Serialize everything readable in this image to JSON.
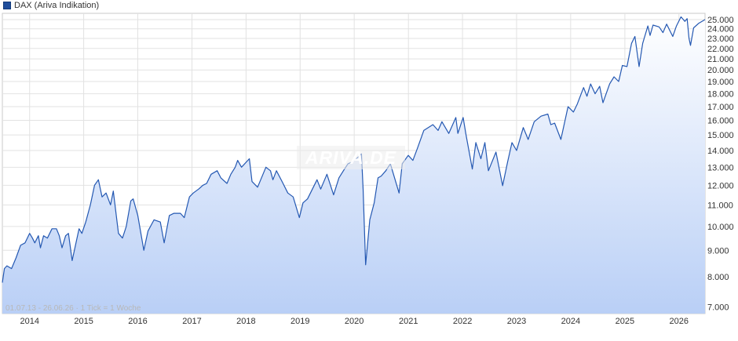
{
  "chart_data": {
    "type": "area",
    "series": [
      {
        "name": "DAX (Ariva Indikation)",
        "color": "#2458b2",
        "points": [
          [
            "2013-07-01",
            7800
          ],
          [
            "2013-07-15",
            8300
          ],
          [
            "2013-08-01",
            8400
          ],
          [
            "2013-09-01",
            8300
          ],
          [
            "2013-10-01",
            8700
          ],
          [
            "2013-11-01",
            9200
          ],
          [
            "2013-12-01",
            9300
          ],
          [
            "2014-01-01",
            9700
          ],
          [
            "2014-01-20",
            9500
          ],
          [
            "2014-02-05",
            9300
          ],
          [
            "2014-03-01",
            9600
          ],
          [
            "2014-03-15",
            9100
          ],
          [
            "2014-04-05",
            9600
          ],
          [
            "2014-05-01",
            9500
          ],
          [
            "2014-06-01",
            9900
          ],
          [
            "2014-07-01",
            9900
          ],
          [
            "2014-07-20",
            9600
          ],
          [
            "2014-08-08",
            9100
          ],
          [
            "2014-09-01",
            9600
          ],
          [
            "2014-09-20",
            9700
          ],
          [
            "2014-10-15",
            8600
          ],
          [
            "2014-11-10",
            9300
          ],
          [
            "2014-12-01",
            9900
          ],
          [
            "2014-12-20",
            9700
          ],
          [
            "2015-01-15",
            10200
          ],
          [
            "2015-02-15",
            11000
          ],
          [
            "2015-03-15",
            12000
          ],
          [
            "2015-04-10",
            12300
          ],
          [
            "2015-05-05",
            11400
          ],
          [
            "2015-06-01",
            11600
          ],
          [
            "2015-07-01",
            11000
          ],
          [
            "2015-07-20",
            11700
          ],
          [
            "2015-08-24",
            9700
          ],
          [
            "2015-09-20",
            9500
          ],
          [
            "2015-10-15",
            10000
          ],
          [
            "2015-11-15",
            11200
          ],
          [
            "2015-12-01",
            11300
          ],
          [
            "2016-01-01",
            10500
          ],
          [
            "2016-02-11",
            9000
          ],
          [
            "2016-03-10",
            9800
          ],
          [
            "2016-04-20",
            10300
          ],
          [
            "2016-06-01",
            10200
          ],
          [
            "2016-06-27",
            9300
          ],
          [
            "2016-08-01",
            10500
          ],
          [
            "2016-09-01",
            10600
          ],
          [
            "2016-10-15",
            10600
          ],
          [
            "2016-11-10",
            10400
          ],
          [
            "2016-12-15",
            11400
          ],
          [
            "2017-01-10",
            11600
          ],
          [
            "2017-02-15",
            11800
          ],
          [
            "2017-03-15",
            12000
          ],
          [
            "2017-04-10",
            12100
          ],
          [
            "2017-05-10",
            12600
          ],
          [
            "2017-06-20",
            12800
          ],
          [
            "2017-07-15",
            12400
          ],
          [
            "2017-08-25",
            12100
          ],
          [
            "2017-09-20",
            12600
          ],
          [
            "2017-10-20",
            13000
          ],
          [
            "2017-11-05",
            13400
          ],
          [
            "2017-12-01",
            13000
          ],
          [
            "2018-01-23",
            13500
          ],
          [
            "2018-02-10",
            12200
          ],
          [
            "2018-03-20",
            11900
          ],
          [
            "2018-05-15",
            13000
          ],
          [
            "2018-06-15",
            12800
          ],
          [
            "2018-07-01",
            12300
          ],
          [
            "2018-07-25",
            12800
          ],
          [
            "2018-09-01",
            12200
          ],
          [
            "2018-10-10",
            11600
          ],
          [
            "2018-11-15",
            11400
          ],
          [
            "2018-12-27",
            10400
          ],
          [
            "2019-01-20",
            11100
          ],
          [
            "2019-02-20",
            11300
          ],
          [
            "2019-04-25",
            12300
          ],
          [
            "2019-05-20",
            11800
          ],
          [
            "2019-07-01",
            12600
          ],
          [
            "2019-08-15",
            11500
          ],
          [
            "2019-09-20",
            12400
          ],
          [
            "2019-10-20",
            12800
          ],
          [
            "2019-11-20",
            13200
          ],
          [
            "2019-12-15",
            13300
          ],
          [
            "2020-01-15",
            13500
          ],
          [
            "2020-02-19",
            13790
          ],
          [
            "2020-03-01",
            11800
          ],
          [
            "2020-03-18",
            8440
          ],
          [
            "2020-04-15",
            10300
          ],
          [
            "2020-05-15",
            11100
          ],
          [
            "2020-06-10",
            12400
          ],
          [
            "2020-07-01",
            12500
          ],
          [
            "2020-08-01",
            12800
          ],
          [
            "2020-09-01",
            13200
          ],
          [
            "2020-10-30",
            11600
          ],
          [
            "2020-11-20",
            13200
          ],
          [
            "2020-12-31",
            13700
          ],
          [
            "2021-01-31",
            13400
          ],
          [
            "2021-03-01",
            14100
          ],
          [
            "2021-04-15",
            15300
          ],
          [
            "2021-06-15",
            15700
          ],
          [
            "2021-07-20",
            15300
          ],
          [
            "2021-08-15",
            15900
          ],
          [
            "2021-09-30",
            15100
          ],
          [
            "2021-11-17",
            16200
          ],
          [
            "2021-12-01",
            15100
          ],
          [
            "2022-01-05",
            16200
          ],
          [
            "2022-01-25",
            15000
          ],
          [
            "2022-03-08",
            12900
          ],
          [
            "2022-04-01",
            14500
          ],
          [
            "2022-05-05",
            13500
          ],
          [
            "2022-06-01",
            14500
          ],
          [
            "2022-06-25",
            12800
          ],
          [
            "2022-08-15",
            13900
          ],
          [
            "2022-09-29",
            11980
          ],
          [
            "2022-11-01",
            13300
          ],
          [
            "2022-12-01",
            14500
          ],
          [
            "2023-01-01",
            14000
          ],
          [
            "2023-02-15",
            15500
          ],
          [
            "2023-03-20",
            14700
          ],
          [
            "2023-04-30",
            15900
          ],
          [
            "2023-06-15",
            16300
          ],
          [
            "2023-07-31",
            16450
          ],
          [
            "2023-08-20",
            15700
          ],
          [
            "2023-09-15",
            15800
          ],
          [
            "2023-10-27",
            14700
          ],
          [
            "2023-12-14",
            17000
          ],
          [
            "2024-01-20",
            16600
          ],
          [
            "2024-02-15",
            17200
          ],
          [
            "2024-03-28",
            18500
          ],
          [
            "2024-04-20",
            17800
          ],
          [
            "2024-05-15",
            18800
          ],
          [
            "2024-06-14",
            18000
          ],
          [
            "2024-07-15",
            18600
          ],
          [
            "2024-08-06",
            17300
          ],
          [
            "2024-09-20",
            18800
          ],
          [
            "2024-10-20",
            19400
          ],
          [
            "2024-11-20",
            19000
          ],
          [
            "2024-12-15",
            20400
          ],
          [
            "2025-01-15",
            20300
          ],
          [
            "2025-02-15",
            22500
          ],
          [
            "2025-03-10",
            23200
          ],
          [
            "2025-04-07",
            20300
          ],
          [
            "2025-05-01",
            22500
          ],
          [
            "2025-06-05",
            24300
          ],
          [
            "2025-06-20",
            23300
          ],
          [
            "2025-07-10",
            24400
          ],
          [
            "2025-08-20",
            24200
          ],
          [
            "2025-09-15",
            23600
          ],
          [
            "2025-10-10",
            24500
          ],
          [
            "2025-11-20",
            23200
          ],
          [
            "2025-12-15",
            24300
          ],
          [
            "2026-01-15",
            25300
          ],
          [
            "2026-02-10",
            24800
          ],
          [
            "2026-02-25",
            25100
          ],
          [
            "2026-03-10",
            23000
          ],
          [
            "2026-03-20",
            22300
          ],
          [
            "2026-04-10",
            24100
          ],
          [
            "2026-05-15",
            24600
          ],
          [
            "2026-06-26",
            25000
          ]
        ]
      }
    ],
    "x_ticks": [
      [
        "2014-01-01",
        "2014"
      ],
      [
        "2015-01-01",
        "2015"
      ],
      [
        "2016-01-01",
        "2016"
      ],
      [
        "2017-01-01",
        "2017"
      ],
      [
        "2018-01-01",
        "2018"
      ],
      [
        "2019-01-01",
        "2019"
      ],
      [
        "2020-01-01",
        "2020"
      ],
      [
        "2021-01-01",
        "2021"
      ],
      [
        "2022-01-01",
        "2022"
      ],
      [
        "2023-01-01",
        "2023"
      ],
      [
        "2024-01-01",
        "2024"
      ],
      [
        "2025-01-01",
        "2025"
      ],
      [
        "2026-01-01",
        "2026"
      ]
    ],
    "xlim": [
      "2013-07-01",
      "2026-06-26"
    ],
    "y_scale": "log",
    "ylim": [
      6800,
      25700
    ],
    "y_ticks": [
      [
        7000,
        "7.000"
      ],
      [
        8000,
        "8.000"
      ],
      [
        9000,
        "9.000"
      ],
      [
        10000,
        "10.000"
      ],
      [
        11000,
        "11.000"
      ],
      [
        12000,
        "12.000"
      ],
      [
        13000,
        "13.000"
      ],
      [
        14000,
        "14.000"
      ],
      [
        15000,
        "15.000"
      ],
      [
        16000,
        "16.000"
      ],
      [
        17000,
        "17.000"
      ],
      [
        18000,
        "18.000"
      ],
      [
        19000,
        "19.000"
      ],
      [
        20000,
        "20.000"
      ],
      [
        21000,
        "21.000"
      ],
      [
        22000,
        "22.000"
      ],
      [
        23000,
        "23.000"
      ],
      [
        24000,
        "24.000"
      ],
      [
        25000,
        "25.000"
      ]
    ],
    "grid": true,
    "legend_position": "top-left"
  },
  "legend": {
    "label": "DAX (Ariva Indikation)"
  },
  "footnote": {
    "text": "01.07.13 - 26.06.26 · 1 Tick = 1 Woche"
  },
  "watermark": {
    "text": "ARIVA.DE"
  }
}
